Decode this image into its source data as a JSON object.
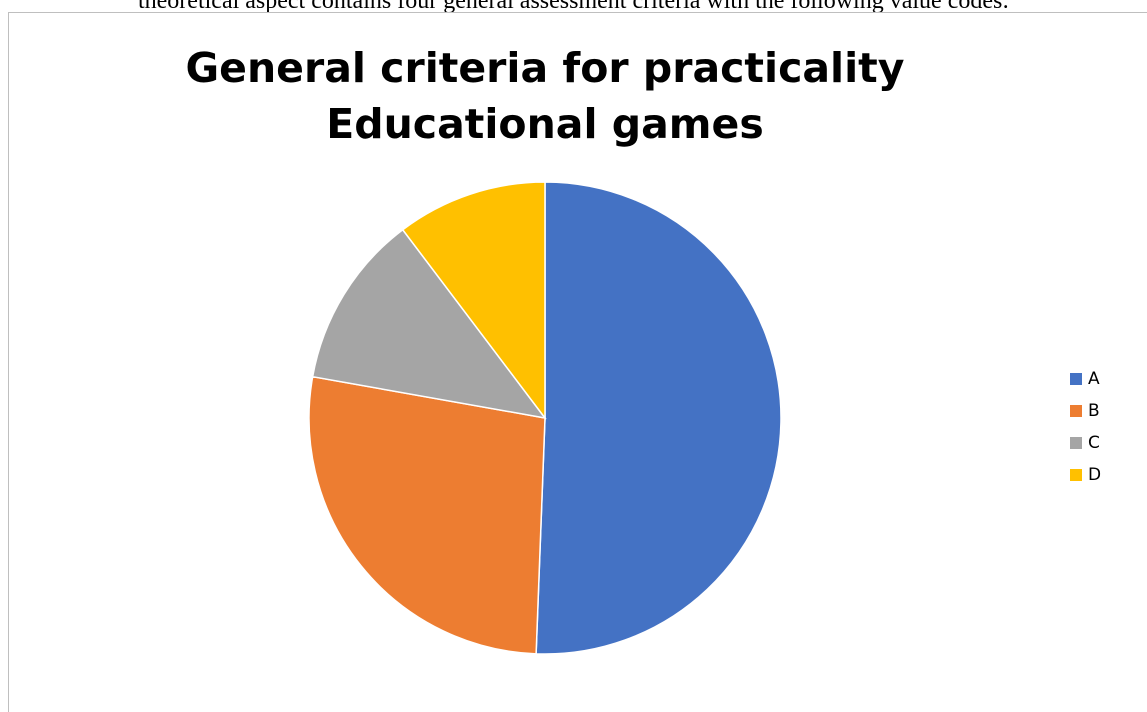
{
  "document": {
    "text_line": "theoretical aspect contains four general assessment criteria with the following value codes:"
  },
  "chart_data": {
    "type": "pie",
    "title": "General criteria for practicality Educational games",
    "categories": [
      "A",
      "B",
      "C",
      "D"
    ],
    "values": [
      50.6,
      27.2,
      11.9,
      10.3
    ],
    "colors": [
      "#4472c4",
      "#ed7d31",
      "#a5a5a5",
      "#ffc000"
    ],
    "legend_position": "right",
    "start_angle": "12 o'clock",
    "direction": "clockwise"
  }
}
